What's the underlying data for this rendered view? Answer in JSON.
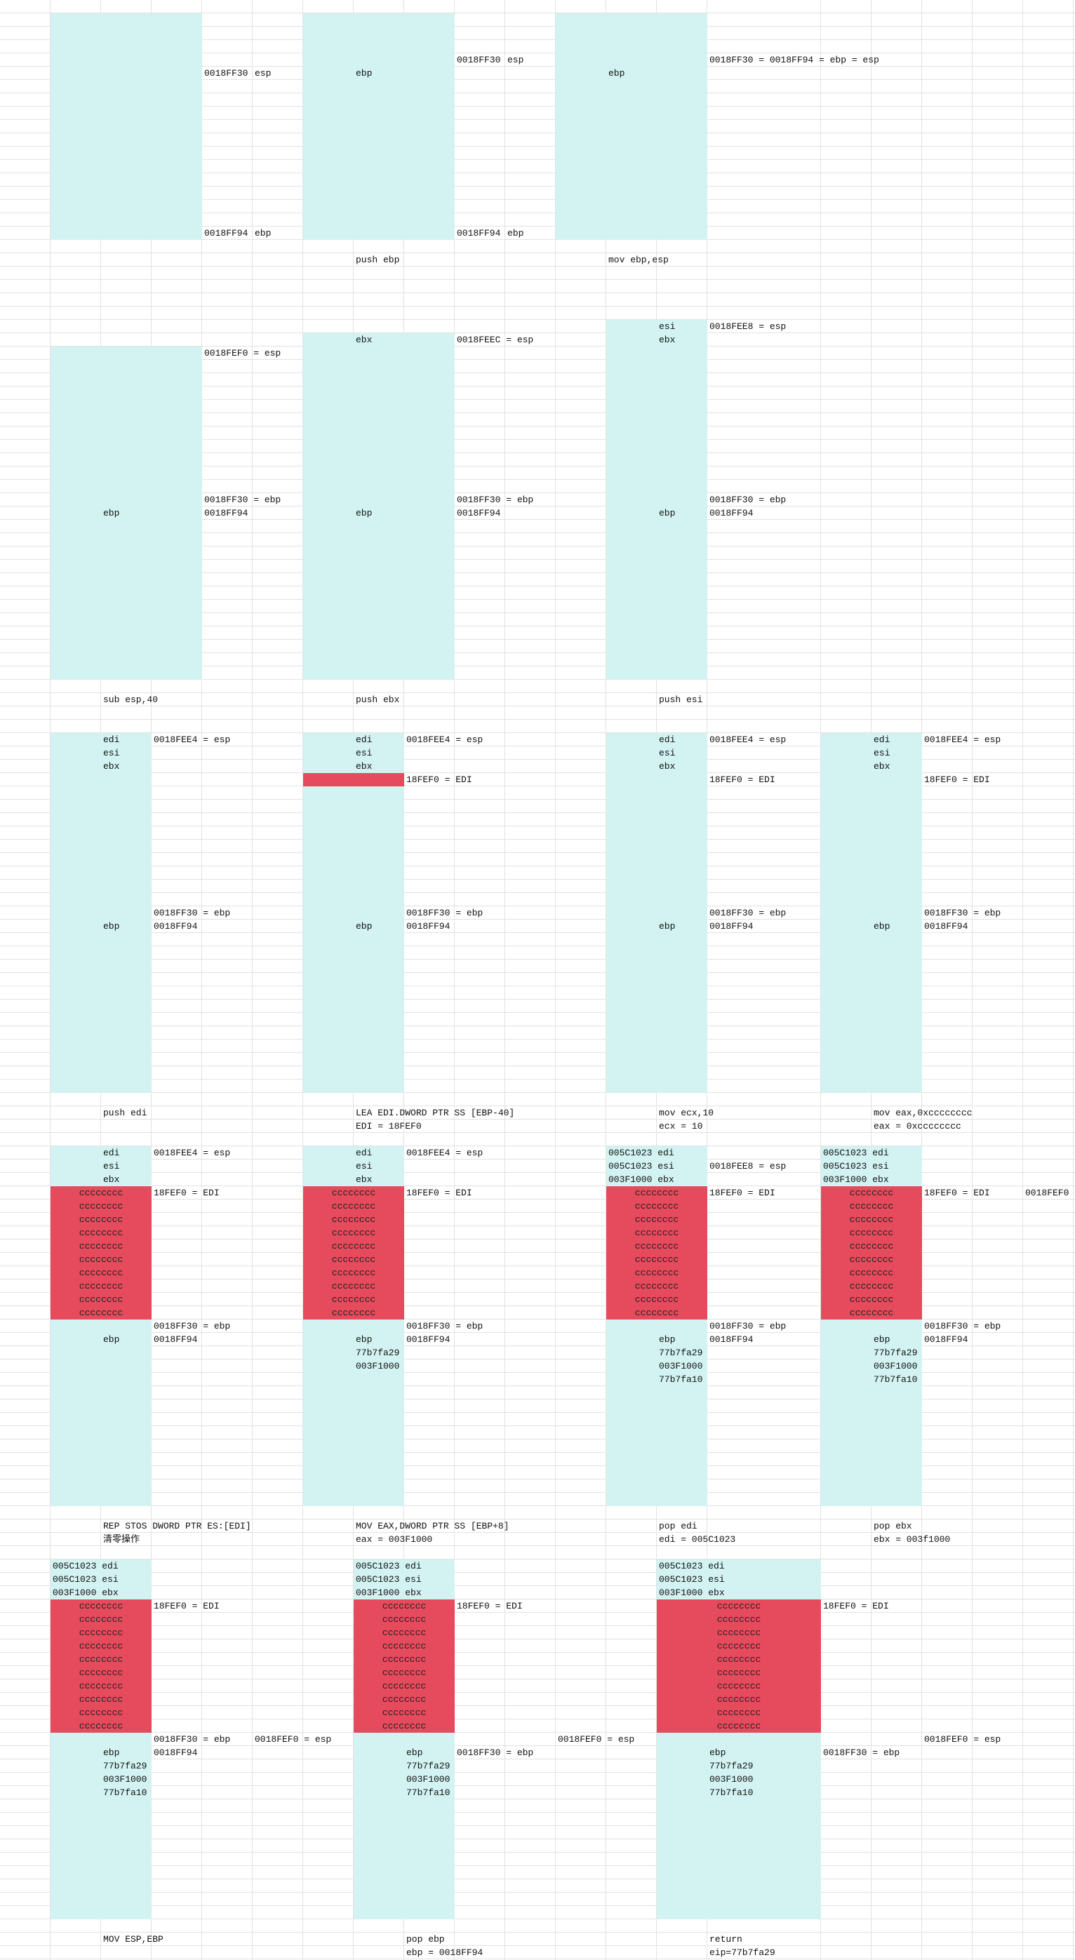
{
  "colors": {
    "stack": "#d2f3f2",
    "cleared": "#e54b5c",
    "grid": "#e2e2e2"
  },
  "panels": [
    {
      "notes": [
        "0018FF30",
        "esp",
        "0018FF94",
        "ebp"
      ]
    },
    {
      "stack": [
        "ebp"
      ],
      "notes": [
        "0018FF30",
        "esp",
        "0018FF94",
        "ebp"
      ],
      "instruction": [
        "push ebp"
      ]
    },
    {
      "stack": [
        "ebp"
      ],
      "notes": [
        "0018FF30 = 0018FF94 = ebp = esp"
      ],
      "instruction": [
        "mov ebp,esp"
      ]
    },
    {
      "stack": [
        "ebp"
      ],
      "notes": [
        "0018FEF0 = esp",
        "0018FF30 = ebp",
        "0018FF94"
      ],
      "instruction": [
        "sub esp,40"
      ]
    },
    {
      "stack": [
        "ebx",
        "ebp"
      ],
      "notes": [
        "0018FEEC = esp",
        "0018FF30 = ebp",
        "0018FF94"
      ],
      "instruction": [
        "push ebx"
      ]
    },
    {
      "stack": [
        "esi",
        "ebx",
        "ebp"
      ],
      "notes": [
        "0018FEE8 = esp",
        "0018FF30 = ebp",
        "0018FF94"
      ],
      "instruction": [
        "push esi"
      ]
    },
    {
      "stack": [
        "edi",
        "esi",
        "ebx",
        "ebp"
      ],
      "notes": [
        "0018FEE4 = esp",
        "0018FF30 = ebp",
        "0018FF94"
      ],
      "instruction": [
        "push edi"
      ]
    },
    {
      "stack": [
        "edi",
        "esi",
        "ebx",
        "ebp"
      ],
      "notes": [
        "0018FEE4 = esp",
        "18FEF0 = EDI",
        "0018FF30 = ebp",
        "0018FF94"
      ],
      "instruction": [
        "LEA EDI.DWORD PTR SS [EBP-40]",
        "EDI = 18FEF0"
      ]
    },
    {
      "stack": [
        "edi",
        "esi",
        "ebx",
        "ebp"
      ],
      "notes": [
        "0018FEE4 = esp",
        "18FEF0 = EDI",
        "0018FF30 = ebp",
        "0018FF94"
      ],
      "instruction": [
        "mov ecx,10",
        "ecx = 10"
      ]
    },
    {
      "stack": [
        "edi",
        "esi",
        "ebx",
        "ebp"
      ],
      "notes": [
        "0018FEE4 = esp",
        "18FEF0 = EDI",
        "0018FF30 = ebp",
        "0018FF94"
      ],
      "instruction": [
        "mov eax,0xcccccccc",
        "eax = 0xcccccccc"
      ]
    },
    {
      "stack": [
        "edi",
        "esi",
        "ebx",
        "ebp"
      ],
      "filled": [
        "cccccccc",
        "cccccccc",
        "cccccccc",
        "cccccccc",
        "cccccccc",
        "cccccccc",
        "cccccccc",
        "cccccccc",
        "cccccccc",
        "cccccccc"
      ],
      "notes": [
        "0018FEE4 = esp",
        "18FEF0 = EDI",
        "0018FF30 = ebp",
        "0018FF94"
      ],
      "instruction": [
        "REP STOS DWORD PTR ES:[EDI]",
        "清零操作"
      ]
    },
    {
      "stack": [
        "edi",
        "esi",
        "ebx",
        "ebp",
        "77b7fa29",
        "003F1000"
      ],
      "filled": [
        "cccccccc",
        "cccccccc",
        "cccccccc",
        "cccccccc",
        "cccccccc",
        "cccccccc",
        "cccccccc",
        "cccccccc",
        "cccccccc",
        "cccccccc"
      ],
      "notes": [
        "0018FEE4 = esp",
        "18FEF0 = EDI",
        "0018FF30 = ebp",
        "0018FF94"
      ],
      "instruction": [
        "MOV EAX,DWORD PTR SS [EBP+8]",
        "eax = 003F1000"
      ]
    },
    {
      "stack": [
        "005C1023 edi",
        "005C1023 esi",
        "003F1000 ebx",
        "ebp",
        "77b7fa29",
        "003F1000",
        "77b7fa10"
      ],
      "filled": [
        "cccccccc",
        "cccccccc",
        "cccccccc",
        "cccccccc",
        "cccccccc",
        "cccccccc",
        "cccccccc",
        "cccccccc",
        "cccccccc",
        "cccccccc"
      ],
      "notes": [
        "0018FEE8 = esp",
        "18FEF0 = EDI",
        "0018FF30 = ebp",
        "0018FF94"
      ],
      "instruction": [
        "pop edi",
        "edi = 005C1023"
      ]
    },
    {
      "stack": [
        "005C1023 edi",
        "005C1023 esi",
        "003F1000 ebx",
        "ebp",
        "77b7fa29",
        "003F1000",
        "77b7fa10"
      ],
      "filled": [
        "cccccccc",
        "cccccccc",
        "cccccccc",
        "cccccccc",
        "cccccccc",
        "cccccccc",
        "cccccccc",
        "cccccccc",
        "cccccccc",
        "cccccccc"
      ],
      "notes": [
        "18FEF0 = EDI",
        "0018FEF0",
        "0018FF30 = ebp",
        "0018FF94"
      ],
      "instruction": [
        "pop ebx",
        "ebx = 003f1000"
      ]
    },
    {
      "stack": [
        "005C1023 edi",
        "005C1023 esi",
        "003F1000 ebx",
        "ebp",
        "77b7fa29",
        "003F1000",
        "77b7fa10"
      ],
      "filled": [
        "cccccccc",
        "cccccccc",
        "cccccccc",
        "cccccccc",
        "cccccccc",
        "cccccccc",
        "cccccccc",
        "cccccccc",
        "cccccccc",
        "cccccccc"
      ],
      "notes": [
        "18FEF0 = EDI",
        "0018FF30 = ebp",
        "0018FF94",
        "0018FEF0 = esp"
      ],
      "instruction": [
        "MOV ESP,EBP"
      ]
    },
    {
      "stack": [
        "005C1023 edi",
        "005C1023 esi",
        "003F1000 ebx",
        "ebp",
        "77b7fa29",
        "003F1000",
        "77b7fa10"
      ],
      "filled": [
        "cccccccc",
        "cccccccc",
        "cccccccc",
        "cccccccc",
        "cccccccc",
        "cccccccc",
        "cccccccc",
        "cccccccc",
        "cccccccc",
        "cccccccc"
      ],
      "notes": [
        "18FEF0 = EDI",
        "0018FEF0 = esp",
        "0018FF30 = ebp"
      ],
      "instruction": [
        "pop ebp",
        "ebp = 0018FF94"
      ]
    },
    {
      "stack": [
        "005C1023 edi",
        "005C1023 esi",
        "003F1000 ebx",
        "ebp",
        "77b7fa29",
        "003F1000",
        "77b7fa10"
      ],
      "filled": [
        "cccccccc",
        "cccccccc",
        "cccccccc",
        "cccccccc",
        "cccccccc",
        "cccccccc",
        "cccccccc",
        "cccccccc",
        "cccccccc",
        "cccccccc"
      ],
      "notes": [
        "18FEF0 = EDI",
        "0018FEF0 = esp",
        "0018FF30 = ebp"
      ],
      "instruction": [
        "return",
        "eip=77b7fa29"
      ]
    }
  ]
}
